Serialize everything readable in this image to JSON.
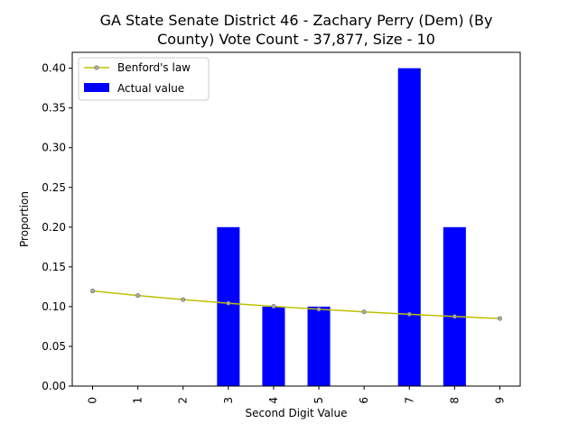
{
  "chart_data": {
    "type": "bar",
    "title_lines": [
      "GA State Senate District 46 - Zachary Perry (Dem) (By",
      "County) Vote Count - 37,877, Size - 10"
    ],
    "xlabel": "Second Digit Value",
    "ylabel": "Proportion",
    "categories": [
      "0",
      "1",
      "2",
      "3",
      "4",
      "5",
      "6",
      "7",
      "8",
      "9"
    ],
    "ylim": [
      0,
      0.42
    ],
    "yticks": [
      "0.00",
      "0.05",
      "0.10",
      "0.15",
      "0.20",
      "0.25",
      "0.30",
      "0.35",
      "0.40"
    ],
    "series": [
      {
        "name": "Benford's law",
        "type": "line",
        "color": "#bfbf00",
        "marker_color": "#aaaaaa",
        "values": [
          0.1197,
          0.1139,
          0.1088,
          0.1043,
          0.1003,
          0.0967,
          0.0934,
          0.0904,
          0.0876,
          0.085
        ]
      },
      {
        "name": "Actual value",
        "type": "bar",
        "color": "#0000ff",
        "values": [
          0,
          0,
          0,
          0.2,
          0.1,
          0.1,
          0,
          0.4,
          0.2,
          0
        ]
      }
    ],
    "legend_position": "upper-left",
    "grid": false
  }
}
